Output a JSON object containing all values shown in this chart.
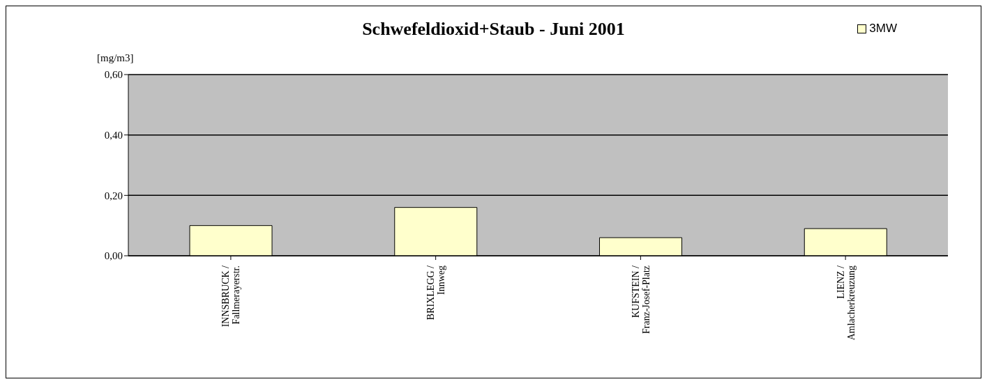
{
  "chart_data": {
    "type": "bar",
    "title": "Schwefeldioxid+Staub - Juni 2001",
    "ylabel": "[mg/m3]",
    "categories": [
      "INNSBRUCK /\nFallmerayerstr.",
      "BRIXLEGG /\nInnweg",
      "KUFSTEIN /\nFranz-Josef-Platz",
      "LIENZ /\nAmlacherkreuzung"
    ],
    "series": [
      {
        "name": "3MW",
        "color": "#ffffcc",
        "values": [
          0.1,
          0.16,
          0.06,
          0.09
        ]
      }
    ],
    "ylim": [
      0,
      0.6
    ],
    "yticks": [
      {
        "value": 0,
        "label": "0,00"
      },
      {
        "value": 0.2,
        "label": "0,20"
      },
      {
        "value": 0.4,
        "label": "0,40"
      },
      {
        "value": 0.6,
        "label": "0,60"
      }
    ],
    "grid": "y",
    "legend": "top right"
  }
}
